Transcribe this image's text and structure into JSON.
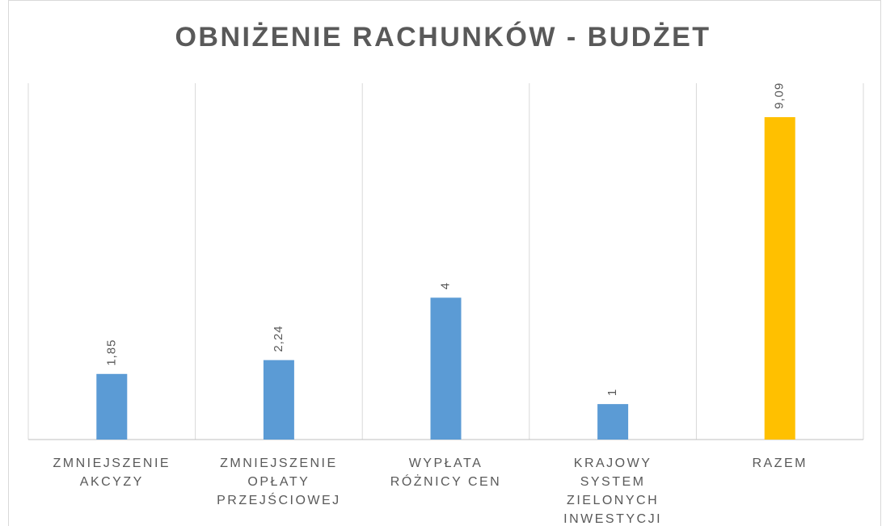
{
  "chart_data": {
    "type": "bar",
    "title": "OBNIŻENIE RACHUNKÓW - BUDŻET",
    "categories": [
      "ZMNIEJSZENIE AKCYZY",
      "ZMNIEJSZENIE OPŁATY PRZEJŚCIOWEJ",
      "WYPŁATA RÓŻNICY CEN",
      "KRAJOWY SYSTEM ZIELONYCH INWESTYCJI",
      "RAZEM"
    ],
    "values": [
      1.85,
      2.24,
      4,
      1,
      9.09
    ],
    "value_labels": [
      "1,85",
      "2,24",
      "4",
      "1",
      "9,09"
    ],
    "colors": [
      "#5b9bd5",
      "#5b9bd5",
      "#5b9bd5",
      "#5b9bd5",
      "#ffc000"
    ],
    "grid": true
  }
}
